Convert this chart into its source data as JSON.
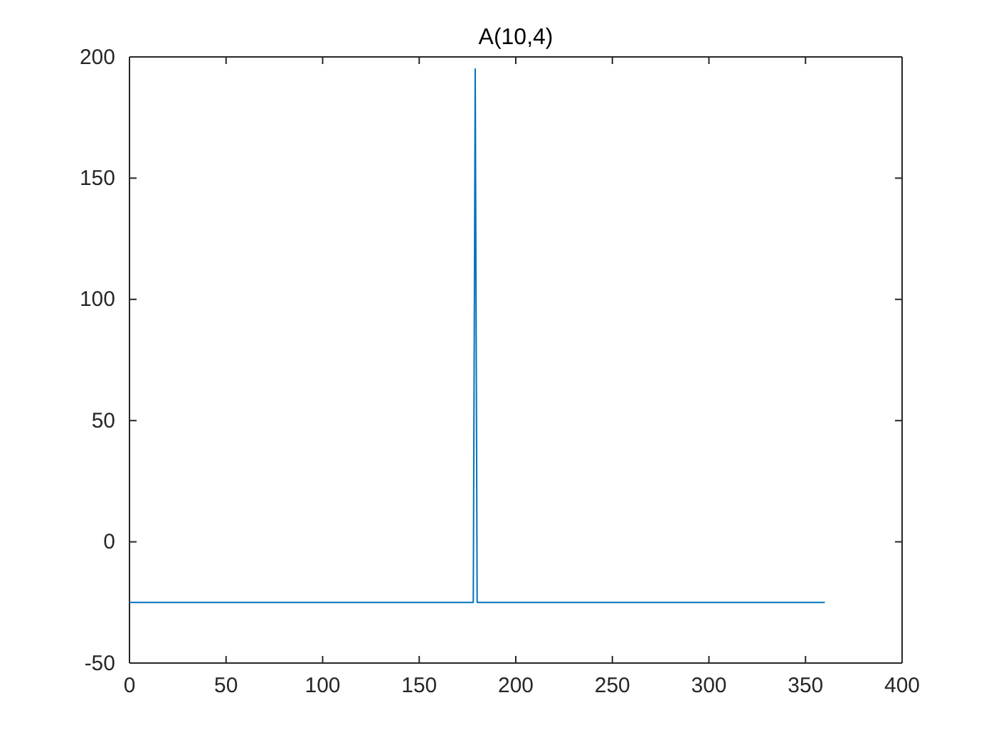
{
  "chart_data": {
    "type": "line",
    "title": "A(10,4)",
    "x": [
      0,
      178,
      179,
      180,
      360
    ],
    "series": [
      {
        "color": "#0072bd",
        "values": [
          -25,
          -25,
          195,
          -25,
          -25
        ]
      }
    ],
    "xlim": [
      0,
      400
    ],
    "xticks": [
      0,
      50,
      100,
      150,
      200,
      250,
      300,
      350,
      400
    ],
    "ylim": [
      -50,
      200
    ],
    "yticks": [
      -50,
      0,
      50,
      100,
      150,
      200
    ],
    "grid": false,
    "marker": "none",
    "line_style": "solid"
  }
}
